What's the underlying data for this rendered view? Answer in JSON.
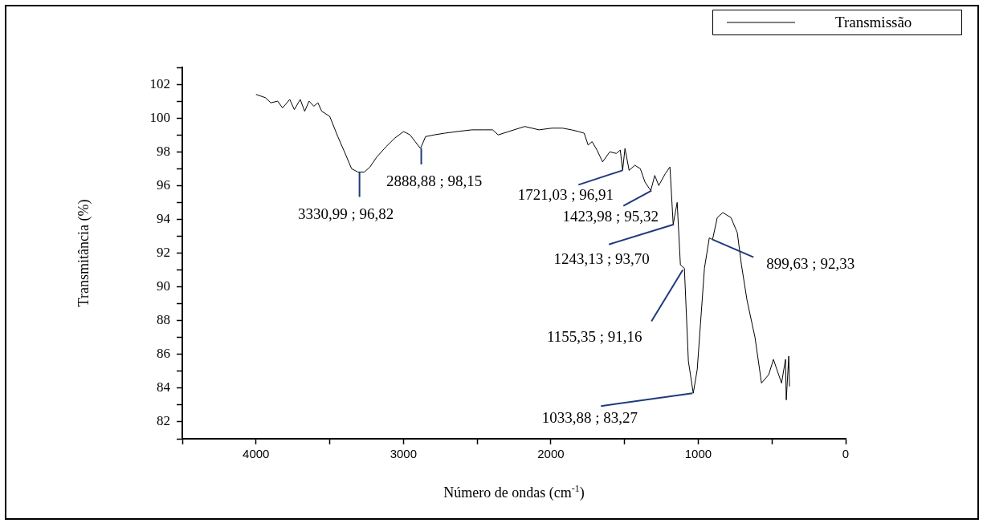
{
  "chart_data": {
    "type": "line",
    "xlabel": "Número de ondas (cm$^{-1}$)",
    "ylabel": "Transmitância (%)",
    "series": [
      {
        "name": "Transmissão",
        "color": "#000000",
        "x": [
          4000,
          3935,
          3900,
          3853,
          3820,
          3771,
          3740,
          3700,
          3670,
          3640,
          3608,
          3580,
          3554,
          3500,
          3445,
          3400,
          3352,
          3309,
          3265,
          3227,
          3180,
          3118,
          3060,
          2999,
          2955,
          2920,
          2884,
          2850,
          2792,
          2721,
          2636,
          2536,
          2450,
          2395,
          2357,
          2286,
          2177,
          2080,
          1992,
          1921,
          1860,
          1812,
          1774,
          1747,
          1720,
          1687,
          1649,
          1600,
          1556,
          1529,
          1513,
          1497,
          1469,
          1430,
          1393,
          1361,
          1322,
          1295,
          1268,
          1224,
          1192,
          1170,
          1143,
          1121,
          1094,
          1067,
          1034,
          1007,
          958,
          925,
          903,
          871,
          833,
          778,
          735,
          707,
          669,
          615,
          571,
          522,
          490,
          435,
          408,
          403,
          386,
          381
        ],
        "values": [
          101.4,
          101.2,
          100.9,
          101.0,
          100.6,
          101.1,
          100.5,
          101.1,
          100.4,
          101.0,
          100.7,
          100.9,
          100.4,
          100.1,
          98.9,
          98.0,
          97.0,
          96.8,
          96.8,
          97.1,
          97.7,
          98.3,
          98.8,
          99.2,
          99.0,
          98.6,
          98.2,
          98.9,
          99.0,
          99.1,
          99.2,
          99.3,
          99.3,
          99.3,
          99.0,
          99.2,
          99.5,
          99.3,
          99.4,
          99.4,
          99.3,
          99.2,
          99.1,
          98.4,
          98.6,
          98.1,
          97.4,
          98.0,
          97.9,
          98.1,
          96.9,
          98.2,
          96.9,
          97.2,
          97.0,
          96.2,
          95.7,
          96.6,
          96.0,
          96.7,
          97.1,
          93.7,
          95.0,
          91.3,
          91.1,
          85.6,
          83.7,
          85.1,
          91.1,
          92.9,
          92.8,
          94.1,
          94.4,
          94.1,
          93.2,
          91.3,
          89.2,
          87.0,
          84.3,
          84.8,
          85.7,
          84.3,
          85.7,
          83.3,
          85.9,
          84.1
        ]
      }
    ],
    "annotations": [
      {
        "text": "3330,99 ; 96,82",
        "x": 3298,
        "y": 96.8
      },
      {
        "text": "2888,88 ; 98,15",
        "x": 2879,
        "y": 98.2
      },
      {
        "text": "1721,03 ; 96,91",
        "x": 1513,
        "y": 96.9
      },
      {
        "text": "1423,98 ; 95,32",
        "x": 1317,
        "y": 95.7
      },
      {
        "text": "1243,13 ; 93,70",
        "x": 1165,
        "y": 93.7
      },
      {
        "text": "1155,35 ; 91,16",
        "x": 1105,
        "y": 91.0
      },
      {
        "text": "1033,88 ; 83,27",
        "x": 1039,
        "y": 83.7
      },
      {
        "text": "899,63 ; 92,33",
        "x": 903,
        "y": 92.8
      }
    ],
    "xlim": [
      4500,
      0
    ],
    "xticks": [
      {
        "value": 4500,
        "label": null
      },
      4000,
      {
        "value": 3500,
        "label": null
      },
      3000,
      {
        "value": 2500,
        "label": null
      },
      2000,
      {
        "value": 1500,
        "label": null
      },
      1000,
      {
        "value": 500,
        "label": null
      },
      0
    ],
    "ylim": [
      81,
      103
    ],
    "yticks": [
      {
        "value": 81,
        "label": null
      },
      82,
      {
        "value": 83,
        "label": null
      },
      84,
      {
        "value": 85,
        "label": null
      },
      86,
      {
        "value": 87,
        "label": null
      },
      88,
      {
        "value": 89,
        "label": null
      },
      90,
      {
        "value": 91,
        "label": null
      },
      92,
      {
        "value": 93,
        "label": null
      },
      94,
      {
        "value": 95,
        "label": null
      },
      96,
      {
        "value": 97,
        "label": null
      },
      98,
      {
        "value": 99,
        "label": null
      },
      100,
      {
        "value": 101,
        "label": null
      },
      102,
      {
        "value": 103,
        "label": null
      }
    ],
    "grid": false,
    "legend": "top right",
    "marker": "none",
    "line_style": "solid"
  }
}
